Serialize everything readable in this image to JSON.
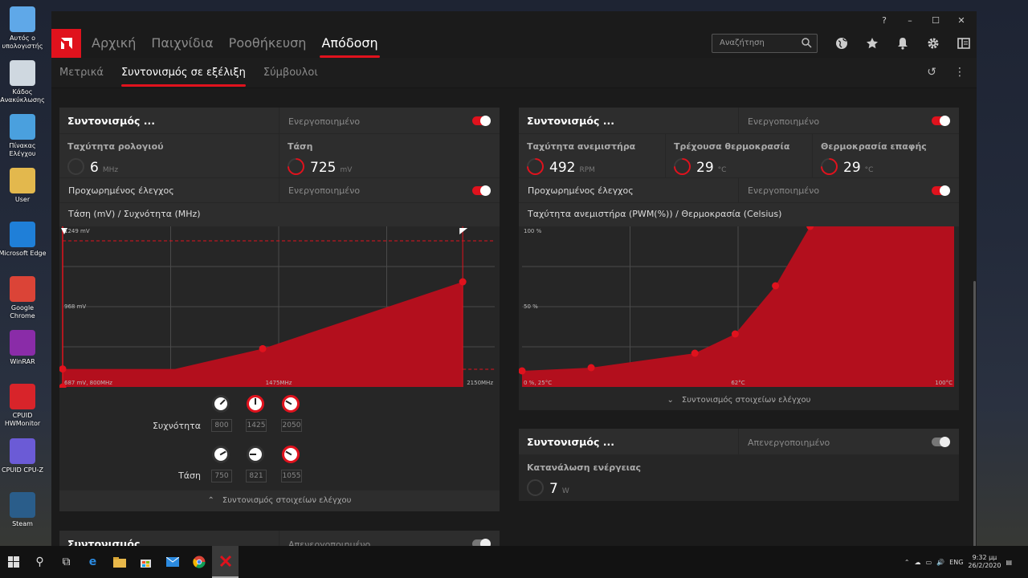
{
  "desktop": {
    "icons": [
      {
        "label": "Αυτός ο υπολογιστής",
        "icon": "computer-icon"
      },
      {
        "label": "Κάδος Ανακύκλωσης",
        "icon": "recycle-bin-icon"
      },
      {
        "label": "Πίνακας Ελέγχου",
        "icon": "control-panel-icon"
      },
      {
        "label": "User",
        "icon": "user-folder-icon"
      },
      {
        "label": "Microsoft Edge",
        "icon": "edge-icon"
      },
      {
        "label": "Google Chrome",
        "icon": "chrome-icon"
      },
      {
        "label": "WinRAR",
        "icon": "winrar-icon"
      },
      {
        "label": "CPUID HWMonitor",
        "icon": "hwmonitor-icon"
      },
      {
        "label": "CPUID CPU-Z",
        "icon": "cpuz-icon"
      },
      {
        "label": "Steam",
        "icon": "steam-icon"
      }
    ]
  },
  "colors": {
    "accent": "#e0121d",
    "panel": "#262626",
    "cell": "#2d2d2d"
  },
  "nav": {
    "items": [
      "Αρχική",
      "Παιχνίδια",
      "Ροοθήκευση",
      "Απόδοση"
    ],
    "active": "Απόδοση",
    "search_placeholder": "Αναζήτηση"
  },
  "subnav": {
    "items": [
      "Μετρικά",
      "Συντονισμός σε εξέλιξη",
      "Σύμβουλοι"
    ],
    "active": "Συντονισμός σε εξέλιξη"
  },
  "gpu_panel": {
    "title": "Συντονισμός ...",
    "status": "Ενεργοποιημένο",
    "clock_label": "Ταχύτητα ρολογιού",
    "clock_value": "6",
    "clock_unit": "MHz",
    "voltage_label": "Τάση",
    "voltage_value": "725",
    "voltage_unit": "mV",
    "advanced_label": "Προχωρημένος έλεγχος",
    "advanced_status": "Ενεργοποιημένο",
    "chart_title": "Τάση (mV) / Συχνότητα (MHz)",
    "chart_labels": {
      "y_top": "1249 mV",
      "y_mid": "968 mV",
      "x_left": "687 mV, 800MHz",
      "x_mid": "1475MHz",
      "x_right": "2150MHz"
    },
    "freq_label": "Συχνότητα",
    "freq_values": [
      "800",
      "1425",
      "2050"
    ],
    "volt_label": "Τάση",
    "volt_values": [
      "750",
      "821",
      "1055"
    ],
    "collapse_label": "Συντονισμός στοιχείων ελέγχου"
  },
  "fan_panel": {
    "title": "Συντονισμός ...",
    "status": "Ενεργοποιημένο",
    "fan_label": "Ταχύτητα ανεμιστήρα",
    "fan_value": "492",
    "fan_unit": "RPM",
    "temp_label": "Τρέχουσα θερμοκρασία",
    "temp_value": "29",
    "temp_unit": "°C",
    "junction_label": "Θερμοκρασία επαφής",
    "junction_value": "29",
    "junction_unit": "°C",
    "advanced_label": "Προχωρημένος έλεγχος",
    "advanced_status": "Ενεργοποιημένο",
    "chart_title": "Ταχύτητα ανεμιστήρα (PWM(%)) / Θερμοκρασία (Celsius)",
    "chart_labels": {
      "y_top": "100 %",
      "y_mid": "50 %",
      "x_left": "0 %, 25°C",
      "x_mid": "62°C",
      "x_right": "100°C"
    },
    "expand_label": "Συντονισμός στοιχείων ελέγχου"
  },
  "power_panel": {
    "title": "Συντονισμός ...",
    "status": "Απενεργοποιημένο",
    "power_label": "Κατανάλωση ενέργειας",
    "power_value": "7",
    "power_unit": "W"
  },
  "bottom_panel": {
    "title": "Συντονισμός",
    "status": "Απενεργοποιημένο"
  },
  "chart_data": [
    {
      "type": "area",
      "title": "Τάση (mV) / Συχνότητα (MHz)",
      "xlabel": "Συχνότητα (MHz)",
      "ylabel": "Τάση (mV)",
      "x": [
        800,
        1425,
        2050
      ],
      "y": [
        750,
        821,
        1055
      ],
      "xlim": [
        800,
        2150
      ],
      "ylim": [
        687,
        1249
      ]
    },
    {
      "type": "area",
      "title": "Ταχύτητα ανεμιστήρα (PWM(%)) / Θερμοκρασία (Celsius)",
      "xlabel": "Θερμοκρασία (Celsius)",
      "ylabel": "PWM (%)",
      "x": [
        25,
        37,
        55,
        62,
        69,
        75
      ],
      "y": [
        10,
        12,
        21,
        33,
        63,
        100
      ],
      "xlim": [
        25,
        100
      ],
      "ylim": [
        0,
        100
      ]
    }
  ],
  "taskbar": {
    "time": "9:32 μμ",
    "date": "26/2/2020",
    "lang": "ENG"
  }
}
